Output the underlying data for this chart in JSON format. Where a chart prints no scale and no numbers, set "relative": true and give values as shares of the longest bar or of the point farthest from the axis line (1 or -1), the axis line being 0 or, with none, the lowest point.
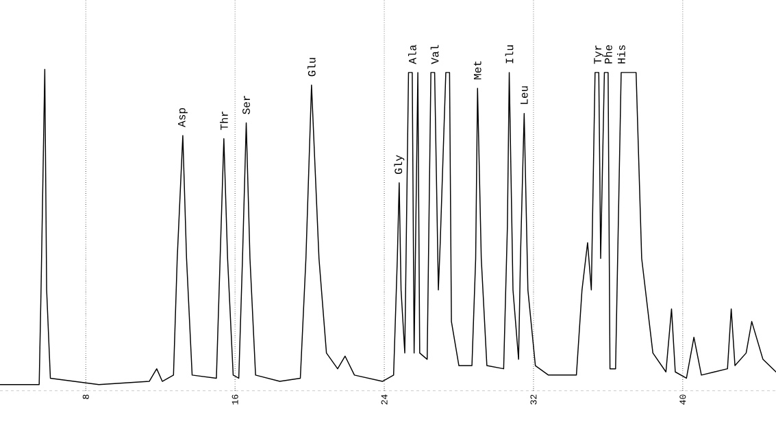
{
  "chart_data": {
    "type": "line",
    "relative": true,
    "grid": "x",
    "marker": "none",
    "line_style": "solid",
    "xlim": [
      3.4,
      45.0
    ],
    "xticks": [
      8,
      16,
      24,
      32,
      40
    ],
    "x": [
      3.4,
      5.5,
      5.6,
      5.8,
      5.9,
      6.1,
      8.7,
      11.4,
      11.8,
      12.1,
      12.7,
      12.9,
      13.2,
      13.4,
      13.7,
      15.0,
      15.2,
      15.4,
      15.6,
      15.9,
      16.2,
      16.4,
      16.6,
      16.8,
      17.1,
      18.4,
      19.5,
      19.8,
      20.1,
      20.5,
      20.9,
      21.5,
      21.9,
      22.4,
      23.9,
      24.5,
      24.7,
      24.8,
      24.9,
      25.1,
      25.3,
      25.5,
      25.6,
      25.8,
      25.9,
      26.3,
      26.5,
      26.7,
      26.9,
      27.0,
      27.3,
      27.5,
      27.6,
      28.0,
      28.7,
      28.9,
      29.0,
      29.2,
      29.5,
      30.4,
      30.6,
      30.7,
      30.9,
      31.2,
      31.3,
      31.5,
      31.7,
      32.1,
      32.8,
      34.3,
      34.6,
      34.9,
      35.1,
      35.3,
      35.5,
      35.6,
      35.8,
      36.0,
      36.1,
      36.4,
      36.7,
      37.5,
      37.8,
      38.4,
      39.1,
      39.4,
      39.6,
      40.2,
      40.6,
      41.0,
      41.7,
      42.4,
      42.6,
      42.8,
      43.4,
      43.7,
      44.3,
      45.0
    ],
    "series": [
      {
        "color": "#000000",
        "values": [
          0.0,
          0.0,
          0.3,
          1.0,
          0.3,
          0.02,
          0.0,
          0.01,
          0.05,
          0.01,
          0.03,
          0.4,
          0.79,
          0.4,
          0.03,
          0.02,
          0.4,
          0.78,
          0.4,
          0.03,
          0.02,
          0.4,
          0.83,
          0.4,
          0.03,
          0.01,
          0.02,
          0.4,
          0.95,
          0.4,
          0.1,
          0.05,
          0.09,
          0.03,
          0.01,
          0.03,
          0.4,
          0.64,
          0.3,
          0.1,
          0.99,
          0.99,
          0.1,
          0.99,
          0.1,
          0.08,
          0.99,
          0.99,
          0.3,
          0.45,
          0.99,
          0.99,
          0.2,
          0.06,
          0.06,
          0.4,
          0.94,
          0.4,
          0.06,
          0.05,
          0.5,
          0.99,
          0.3,
          0.08,
          0.4,
          0.86,
          0.3,
          0.06,
          0.03,
          0.03,
          0.3,
          0.45,
          0.3,
          0.99,
          0.99,
          0.4,
          0.99,
          0.99,
          0.05,
          0.05,
          0.99,
          0.99,
          0.4,
          0.1,
          0.04,
          0.24,
          0.04,
          0.02,
          0.15,
          0.03,
          0.04,
          0.05,
          0.24,
          0.06,
          0.1,
          0.2,
          0.08,
          0.04
        ]
      }
    ],
    "annotations": [
      {
        "text": "Asp",
        "x": 13.2,
        "y": 0.79
      },
      {
        "text": "Thr",
        "x": 15.4,
        "y": 0.78
      },
      {
        "text": "Ser",
        "x": 16.6,
        "y": 0.83
      },
      {
        "text": "Glu",
        "x": 20.1,
        "y": 0.95
      },
      {
        "text": "Gly",
        "x": 24.8,
        "y": 0.64
      },
      {
        "text": "Ala",
        "x": 25.5,
        "y": 0.99
      },
      {
        "text": "Val",
        "x": 26.7,
        "y": 0.99
      },
      {
        "text": "Met",
        "x": 29.0,
        "y": 0.94
      },
      {
        "text": "Ilu",
        "x": 30.7,
        "y": 0.99
      },
      {
        "text": "Leu",
        "x": 31.5,
        "y": 0.86
      },
      {
        "text": "Tyr",
        "x": 35.5,
        "y": 0.99
      },
      {
        "text": "Phe",
        "x": 36.0,
        "y": 0.99
      },
      {
        "text": "His",
        "x": 36.7,
        "y": 0.99
      }
    ]
  }
}
